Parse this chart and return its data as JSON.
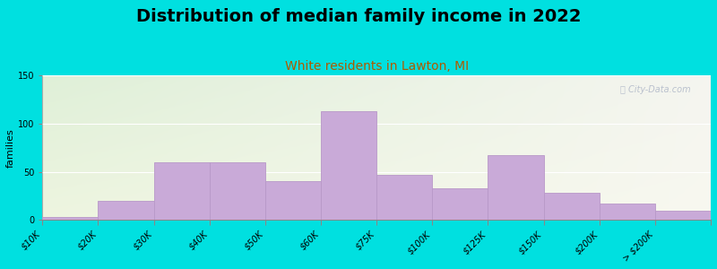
{
  "title": "Distribution of median family income in 2022",
  "subtitle": "White residents in Lawton, MI",
  "ylabel": "families",
  "categories": [
    "$10K",
    "$20K",
    "$30K",
    "$40K",
    "$50K",
    "$60K",
    "$75K",
    "$100K",
    "$125K",
    "$150K",
    "$200K",
    "> $200K"
  ],
  "values": [
    3,
    20,
    60,
    60,
    40,
    113,
    47,
    33,
    67,
    28,
    17,
    10
  ],
  "bar_color": "#c9aad8",
  "bar_edge_color": "#b898c8",
  "background_outer": "#00e0e0",
  "ylim": [
    0,
    150
  ],
  "yticks": [
    0,
    50,
    100,
    150
  ],
  "title_fontsize": 14,
  "subtitle_fontsize": 10,
  "subtitle_color": "#b05a00",
  "ylabel_fontsize": 8,
  "tick_fontsize": 7,
  "watermark": "Ⓢ City-Data.com",
  "watermark_color": "#b0b8c8"
}
